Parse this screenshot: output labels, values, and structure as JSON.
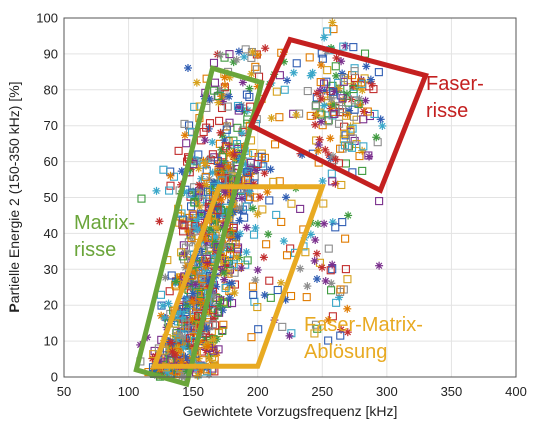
{
  "chart_data": {
    "type": "scatter",
    "xlabel": "Gewichtete Vorzugsfrequenz [kHz]",
    "ylabel_bold": "P",
    "ylabel_rest": "artielle Energie 2 (150-350 kHz) [%]",
    "xlim": [
      50,
      400
    ],
    "ylim": [
      0,
      100
    ],
    "xticks": [
      "50",
      "100",
      "150",
      "200",
      "250",
      "300",
      "350",
      "400"
    ],
    "yticks": [
      "0",
      "10",
      "20",
      "30",
      "40",
      "50",
      "60",
      "70",
      "80",
      "90",
      "100"
    ],
    "grid": true,
    "marker_styles": [
      "open-square",
      "asterisk"
    ],
    "marker_colors": [
      "#e07b00",
      "#2f5db3",
      "#7a2f8c",
      "#3e9a3e",
      "#c22d2d",
      "#d6a11c",
      "#3aa7c9",
      "#8c8c8c"
    ],
    "clusters": [
      {
        "x_range": [
          122,
          190
        ],
        "y_range": [
          0,
          55
        ],
        "density": "very high"
      },
      {
        "x_range": [
          140,
          215
        ],
        "y_range": [
          40,
          90
        ],
        "density": "medium"
      },
      {
        "x_range": [
          225,
          300
        ],
        "y_range": [
          50,
          95
        ],
        "density": "medium"
      }
    ],
    "regions": [
      {
        "name": "Matrix-risse",
        "label_lines": [
          "Matrix-",
          "risse"
        ],
        "color": "#6aa53a",
        "polygon": [
          [
            106,
            2
          ],
          [
            145,
            -2
          ],
          [
            203,
            82
          ],
          [
            165,
            86
          ]
        ]
      },
      {
        "name": "Faser-Matrix-Ablösung",
        "label_lines": [
          "Faser-Matrix-",
          "Ablösung"
        ],
        "color": "#e8aa22",
        "polygon": [
          [
            120,
            3
          ],
          [
            200,
            3
          ],
          [
            250,
            53
          ],
          [
            170,
            53
          ]
        ]
      },
      {
        "name": "Faser-risse",
        "label_lines": [
          "Faser-",
          "risse"
        ],
        "color": "#c42020",
        "polygon": [
          [
            225,
            94
          ],
          [
            330,
            84
          ],
          [
            295,
            52
          ],
          [
            195,
            70
          ]
        ]
      }
    ]
  }
}
